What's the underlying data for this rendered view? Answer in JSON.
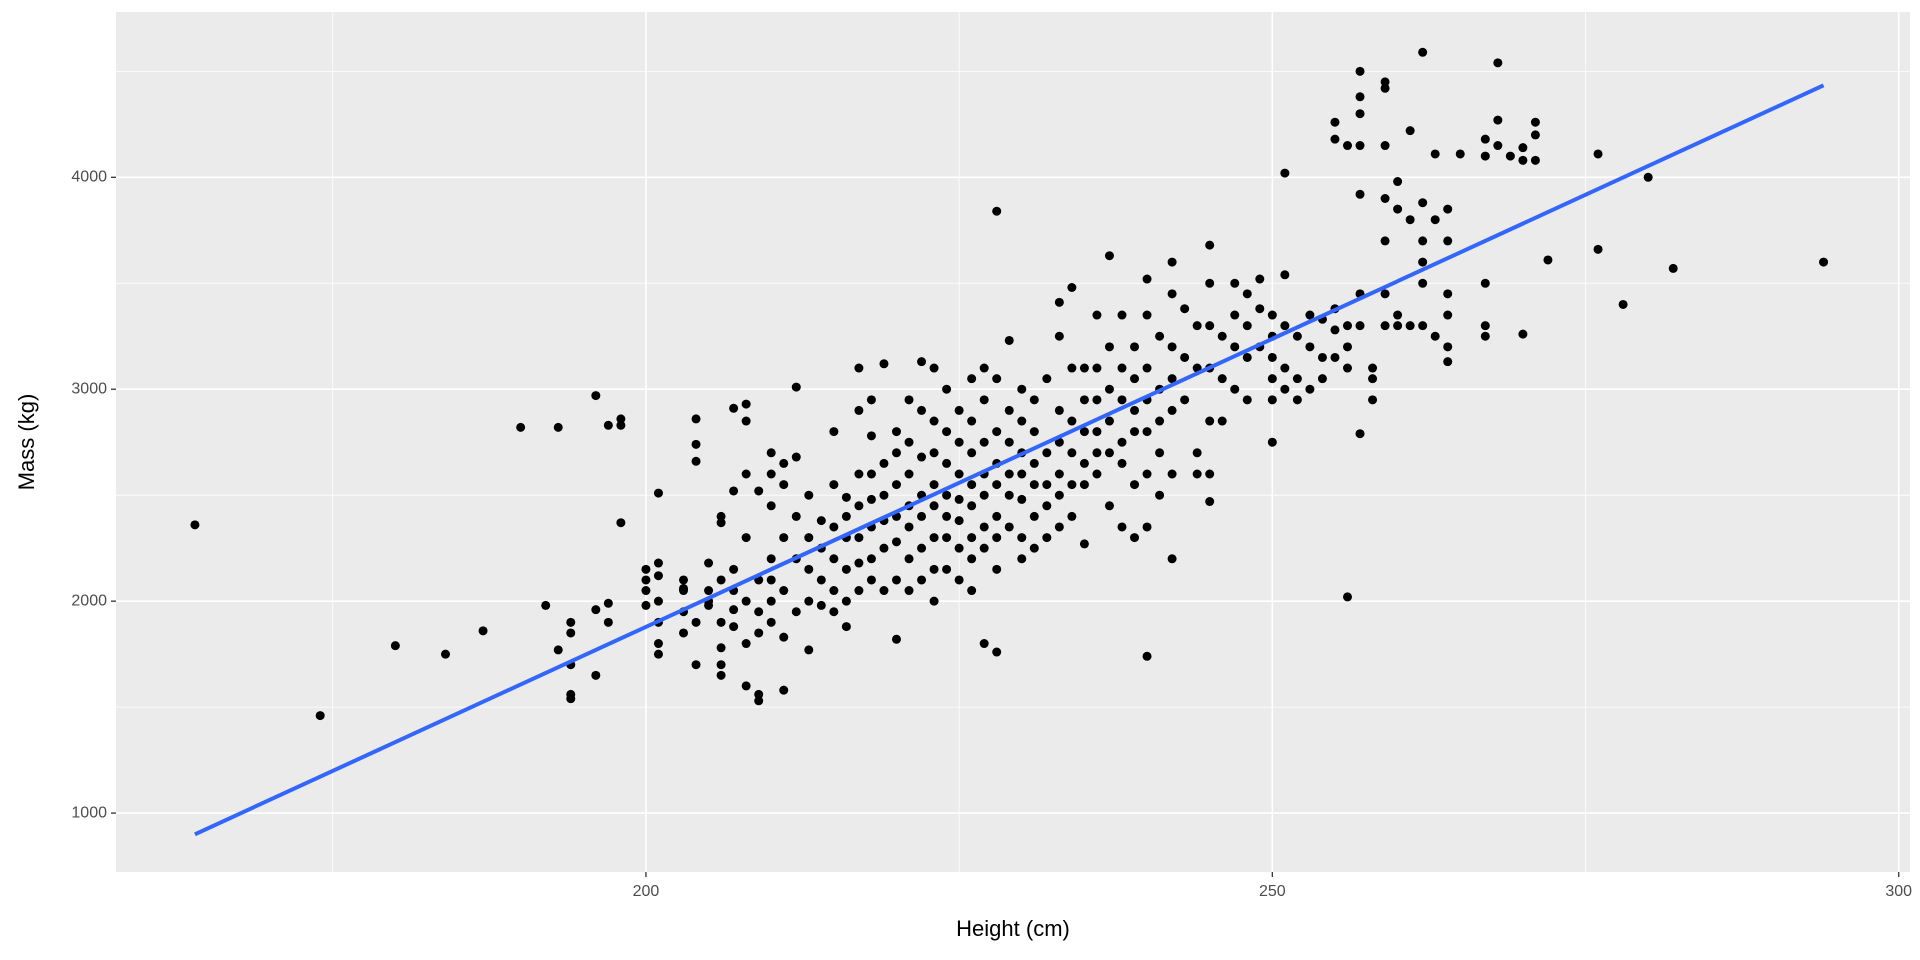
{
  "chart_data": {
    "type": "scatter",
    "x_label": "Height (cm)",
    "y_label": "Mass (kg)",
    "xlim": [
      157.7,
      300.9
    ],
    "ylim": [
      722,
      4780
    ],
    "xticks": [
      200,
      250,
      300
    ],
    "yticks": [
      1000,
      2000,
      3000,
      4000
    ],
    "xminor": [
      175,
      225,
      275
    ],
    "yminor": [
      1500,
      2500,
      3500,
      4500
    ],
    "grid": true,
    "point_color": "#000000",
    "x": [
      164,
      174,
      180,
      184,
      187,
      190,
      193,
      192,
      193,
      194,
      194,
      194,
      194,
      194,
      196,
      196,
      196,
      197,
      197,
      198,
      198,
      198,
      197,
      201,
      262,
      268,
      257,
      259,
      259,
      261,
      265,
      272,
      276,
      276,
      278,
      280,
      282,
      294,
      251,
      228,
      256,
      240,
      257,
      227,
      228,
      209,
      209,
      211,
      200,
      200,
      200,
      200,
      201,
      201,
      201,
      201,
      201,
      201,
      203,
      203,
      203,
      203,
      203,
      204,
      204,
      204,
      204,
      204,
      205,
      205,
      205,
      205,
      206,
      206,
      206,
      206,
      206,
      206,
      206,
      207,
      207,
      207,
      207,
      207,
      207,
      208,
      208,
      208,
      208,
      208,
      208,
      208,
      209,
      209,
      209,
      209,
      210,
      210,
      210,
      210,
      210,
      210,
      210,
      211,
      211,
      211,
      211,
      211,
      212,
      212,
      212,
      212,
      212,
      213,
      213,
      213,
      213,
      213,
      214,
      214,
      214,
      214,
      215,
      215,
      215,
      215,
      215,
      215,
      216,
      216,
      216,
      216,
      216,
      216,
      217,
      217,
      217,
      217,
      217,
      217,
      217,
      218,
      218,
      218,
      218,
      218,
      218,
      218,
      219,
      219,
      219,
      219,
      219,
      219,
      220,
      220,
      220,
      220,
      220,
      220,
      220,
      221,
      221,
      221,
      221,
      221,
      221,
      221,
      222,
      222,
      222,
      222,
      222,
      222,
      222,
      223,
      223,
      223,
      223,
      223,
      223,
      223,
      223,
      224,
      224,
      224,
      224,
      224,
      224,
      224,
      225,
      225,
      225,
      225,
      225,
      225,
      225,
      226,
      226,
      226,
      226,
      226,
      226,
      226,
      226,
      227,
      227,
      227,
      227,
      227,
      227,
      227,
      228,
      228,
      228,
      228,
      228,
      228,
      228,
      229,
      229,
      229,
      229,
      229,
      229,
      230,
      230,
      230,
      230,
      230,
      230,
      230,
      231,
      231,
      231,
      231,
      231,
      231,
      232,
      232,
      232,
      232,
      232,
      233,
      233,
      233,
      233,
      233,
      233,
      233,
      234,
      234,
      234,
      234,
      234,
      234,
      235,
      235,
      235,
      235,
      235,
      235,
      236,
      236,
      236,
      236,
      236,
      236,
      237,
      237,
      237,
      237,
      237,
      237,
      238,
      238,
      238,
      238,
      238,
      238,
      239,
      239,
      239,
      239,
      239,
      239,
      240,
      240,
      240,
      240,
      240,
      240,
      240,
      241,
      241,
      241,
      241,
      241,
      242,
      242,
      242,
      242,
      242,
      242,
      242,
      243,
      243,
      243,
      244,
      244,
      244,
      244,
      245,
      245,
      245,
      245,
      245,
      245,
      245,
      246,
      246,
      246,
      247,
      247,
      247,
      247,
      248,
      248,
      248,
      248,
      249,
      249,
      249,
      250,
      250,
      250,
      250,
      250,
      250,
      251,
      251,
      251,
      251,
      252,
      252,
      252,
      253,
      253,
      253,
      254,
      254,
      254,
      255,
      255,
      255,
      255,
      255,
      256,
      256,
      256,
      256,
      257,
      257,
      257,
      257,
      257,
      257,
      258,
      258,
      258,
      259,
      259,
      259,
      259,
      259,
      260,
      260,
      260,
      260,
      261,
      261,
      262,
      262,
      262,
      262,
      262,
      263,
      263,
      263,
      264,
      264,
      264,
      264,
      264,
      264,
      267,
      267,
      267,
      267,
      267,
      268,
      268,
      269,
      270,
      270,
      270,
      271,
      271,
      271
    ],
    "values": [
      2360,
      1460,
      1790,
      1750,
      1860,
      2820,
      2820,
      1980,
      1770,
      1540,
      1560,
      1700,
      1850,
      1900,
      2970,
      1650,
      1960,
      2830,
      1990,
      2830,
      2860,
      2370,
      1900,
      2510,
      4590,
      4540,
      4500,
      4450,
      4420,
      4220,
      4110,
      3610,
      4110,
      3660,
      3400,
      4000,
      3570,
      3600,
      4020,
      3840,
      2020,
      1740,
      2790,
      1800,
      1760,
      1530,
      1560,
      1580,
      2150,
      2100,
      2050,
      1980,
      2180,
      2120,
      2000,
      1900,
      1800,
      1750,
      2100,
      2050,
      1950,
      1850,
      2060,
      2860,
      2740,
      2660,
      1900,
      1700,
      2180,
      2050,
      2000,
      1980,
      2400,
      2370,
      2100,
      1900,
      1780,
      1650,
      1700,
      2910,
      2520,
      2150,
      2050,
      1960,
      1880,
      2930,
      2850,
      2600,
      2300,
      2000,
      1800,
      1600,
      2520,
      2100,
      1950,
      1850,
      2700,
      2600,
      2450,
      2200,
      2100,
      2000,
      1900,
      2650,
      2550,
      2300,
      2050,
      1830,
      3010,
      2680,
      2400,
      2200,
      1950,
      2500,
      2300,
      2150,
      2000,
      1770,
      2380,
      2250,
      2100,
      1980,
      2800,
      2550,
      2350,
      2200,
      2050,
      1950,
      2490,
      2400,
      2300,
      2150,
      2000,
      1880,
      3100,
      2900,
      2600,
      2450,
      2300,
      2180,
      2050,
      2950,
      2780,
      2600,
      2480,
      2350,
      2200,
      2100,
      3120,
      2650,
      2500,
      2380,
      2250,
      2050,
      2800,
      2700,
      2550,
      2400,
      2280,
      2100,
      1820,
      2950,
      2750,
      2600,
      2450,
      2350,
      2200,
      2050,
      3130,
      2900,
      2680,
      2500,
      2400,
      2250,
      2100,
      3100,
      2850,
      2700,
      2550,
      2450,
      2300,
      2150,
      2000,
      3000,
      2800,
      2650,
      2500,
      2400,
      2300,
      2150,
      2900,
      2750,
      2600,
      2480,
      2380,
      2250,
      2100,
      3050,
      2850,
      2700,
      2550,
      2450,
      2300,
      2200,
      2050,
      3100,
      2950,
      2750,
      2600,
      2500,
      2350,
      2250,
      3050,
      2800,
      2650,
      2550,
      2400,
      2300,
      2150,
      3230,
      2900,
      2750,
      2600,
      2500,
      2350,
      3000,
      2850,
      2700,
      2600,
      2480,
      2300,
      2200,
      2950,
      2800,
      2650,
      2550,
      2400,
      2250,
      3050,
      2700,
      2550,
      2450,
      2300,
      3410,
      3250,
      2900,
      2750,
      2600,
      2500,
      2350,
      3480,
      3100,
      2850,
      2700,
      2550,
      2400,
      3100,
      2950,
      2800,
      2650,
      2550,
      2270,
      3350,
      3100,
      2950,
      2800,
      2700,
      2600,
      3630,
      3200,
      3000,
      2850,
      2700,
      2450,
      3350,
      3100,
      2950,
      2750,
      2650,
      2350,
      3200,
      3050,
      2900,
      2800,
      2550,
      2300,
      3520,
      3350,
      3100,
      2950,
      2800,
      2600,
      2350,
      3250,
      3000,
      2850,
      2700,
      2500,
      3600,
      3450,
      3200,
      3050,
      2900,
      2600,
      2200,
      3380,
      3150,
      2950,
      3300,
      3100,
      2700,
      2600,
      3680,
      3500,
      3300,
      3100,
      2850,
      2600,
      2470,
      3250,
      3050,
      2850,
      3500,
      3350,
      3200,
      3000,
      3450,
      3300,
      3150,
      2950,
      3520,
      3380,
      3200,
      3350,
      3250,
      3150,
      3050,
      2950,
      2750,
      3540,
      3300,
      3100,
      3000,
      3250,
      3050,
      2950,
      3350,
      3200,
      3000,
      3330,
      3150,
      3050,
      4260,
      4180,
      3380,
      3280,
      3150,
      4150,
      3300,
      3200,
      3100,
      4380,
      4300,
      4150,
      3920,
      3450,
      3300,
      3100,
      3050,
      2950,
      4150,
      3900,
      3700,
      3450,
      3300,
      3980,
      3850,
      3350,
      3300,
      3800,
      3300,
      3880,
      3700,
      3600,
      3500,
      3300,
      4110,
      3800,
      3250,
      3850,
      3700,
      3450,
      3350,
      3200,
      3130,
      4180,
      4100,
      3500,
      3300,
      3250,
      4270,
      4150,
      4100,
      4140,
      4080,
      3260,
      4260,
      4200,
      4080
    ],
    "trend": {
      "color": "#3366ff",
      "x": [
        164,
        294
      ],
      "values": [
        900,
        4434
      ]
    }
  }
}
